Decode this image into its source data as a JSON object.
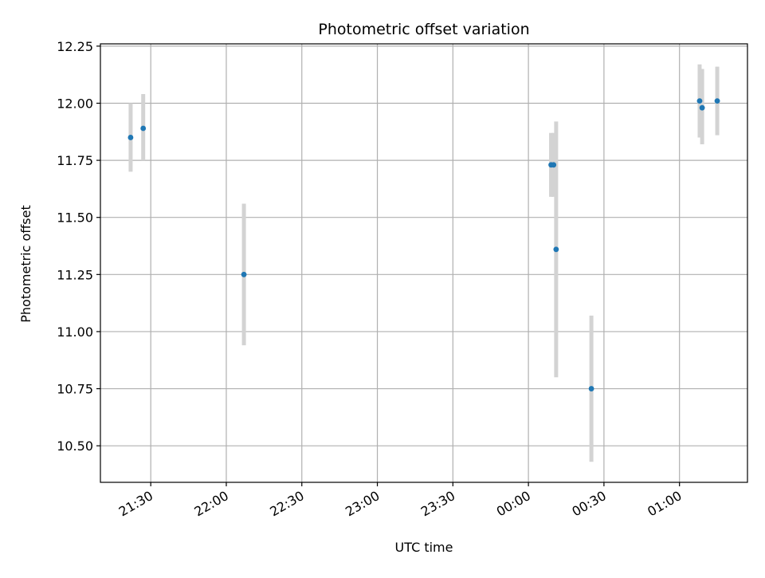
{
  "chart_data": {
    "type": "scatter",
    "title": "Photometric offset variation",
    "xlabel": "UTC time",
    "ylabel": "Photometric offset",
    "grid": true,
    "xlim": [
      "21:10",
      "01:27"
    ],
    "ylim": [
      10.34,
      12.26
    ],
    "x_ticks": [
      "21:30",
      "22:00",
      "22:30",
      "23:00",
      "23:30",
      "00:00",
      "00:30",
      "01:00"
    ],
    "y_ticks": [
      "10.50",
      "10.75",
      "11.00",
      "11.25",
      "11.50",
      "11.75",
      "12.00",
      "12.25"
    ],
    "point_color": "#1f77b4",
    "errorbar_color": "#d3d3d3",
    "points": [
      {
        "x": "21:22",
        "y": 11.85,
        "err_low": 11.7,
        "err_high": 12.0
      },
      {
        "x": "21:27",
        "y": 11.89,
        "err_low": 11.75,
        "err_high": 12.04
      },
      {
        "x": "22:07",
        "y": 11.25,
        "err_low": 10.94,
        "err_high": 11.56
      },
      {
        "x": "00:09",
        "y": 11.73,
        "err_low": 11.59,
        "err_high": 11.87
      },
      {
        "x": "00:10",
        "y": 11.73,
        "err_low": 11.59,
        "err_high": 11.87
      },
      {
        "x": "00:11",
        "y": 11.36,
        "err_low": 10.8,
        "err_high": 11.92
      },
      {
        "x": "00:25",
        "y": 10.75,
        "err_low": 10.43,
        "err_high": 11.07
      },
      {
        "x": "01:08",
        "y": 12.01,
        "err_low": 11.85,
        "err_high": 12.17
      },
      {
        "x": "01:09",
        "y": 11.98,
        "err_low": 11.82,
        "err_high": 12.15
      },
      {
        "x": "01:15",
        "y": 12.01,
        "err_low": 11.86,
        "err_high": 12.16
      }
    ]
  }
}
